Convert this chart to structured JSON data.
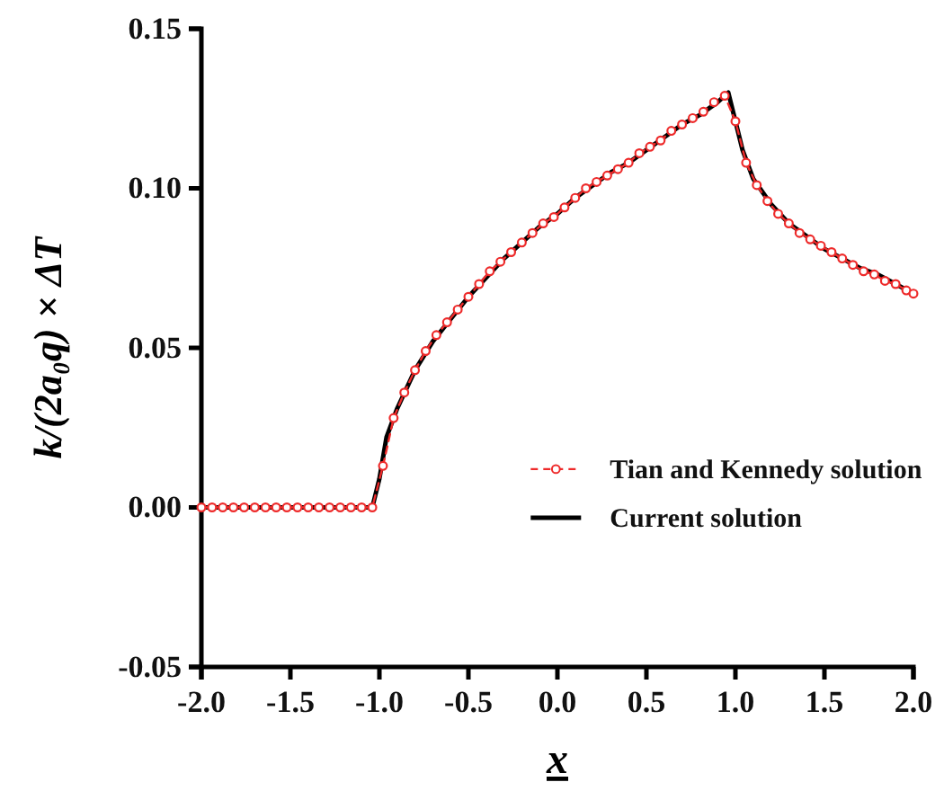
{
  "chart_data": {
    "type": "line",
    "xlabel": "x",
    "ylabel": "k/(2a₀q) × ΔT",
    "xlim": [
      -2,
      2
    ],
    "ylim": [
      -0.05,
      0.15
    ],
    "xticks": [
      {
        "value": -2,
        "label": "-2.0"
      },
      {
        "value": -1.5,
        "label": "-1.5"
      },
      {
        "value": -1,
        "label": "-1.0"
      },
      {
        "value": -0.5,
        "label": "-0.5"
      },
      {
        "value": 0,
        "label": "0.0"
      },
      {
        "value": 0.5,
        "label": "0.5"
      },
      {
        "value": 1,
        "label": "1.0"
      },
      {
        "value": 1.5,
        "label": "1.5"
      },
      {
        "value": 2,
        "label": "2.0"
      }
    ],
    "yticks": [
      {
        "value": -0.05,
        "label": "-0.05"
      },
      {
        "value": 0,
        "label": "0.00"
      },
      {
        "value": 0.05,
        "label": "0.05"
      },
      {
        "value": 0.1,
        "label": "0.10"
      },
      {
        "value": 0.15,
        "label": "0.15"
      }
    ],
    "grid": false,
    "legend": "right",
    "series": [
      {
        "name": "Tian and Kennedy solution",
        "color": "#ee2a2a",
        "line_style": "dashed",
        "marker": "circle",
        "x": [
          -2,
          -1.94,
          -1.88,
          -1.82,
          -1.76,
          -1.7,
          -1.64,
          -1.58,
          -1.52,
          -1.46,
          -1.4,
          -1.34,
          -1.28,
          -1.22,
          -1.16,
          -1.1,
          -1.04,
          -0.98,
          -0.92,
          -0.86,
          -0.8,
          -0.74,
          -0.68,
          -0.62,
          -0.56,
          -0.5,
          -0.44,
          -0.38,
          -0.32,
          -0.26,
          -0.2,
          -0.14,
          -0.08,
          -0.02,
          0.04,
          0.1,
          0.16,
          0.22,
          0.28,
          0.34,
          0.4,
          0.46,
          0.52,
          0.58,
          0.64,
          0.7,
          0.76,
          0.82,
          0.88,
          0.94,
          1,
          1.06,
          1.12,
          1.18,
          1.24,
          1.3,
          1.36,
          1.42,
          1.48,
          1.54,
          1.6,
          1.66,
          1.72,
          1.78,
          1.84,
          1.9,
          1.96,
          2
        ],
        "values": [
          0,
          0,
          0,
          0,
          0,
          0,
          0,
          0,
          0,
          0,
          0,
          0,
          0,
          0,
          0,
          0,
          0,
          0.013,
          0.028,
          0.036,
          0.043,
          0.049,
          0.054,
          0.058,
          0.062,
          0.066,
          0.07,
          0.074,
          0.077,
          0.08,
          0.083,
          0.086,
          0.089,
          0.091,
          0.094,
          0.097,
          0.1,
          0.102,
          0.104,
          0.106,
          0.108,
          0.111,
          0.113,
          0.115,
          0.118,
          0.12,
          0.122,
          0.124,
          0.127,
          0.129,
          0.121,
          0.108,
          0.101,
          0.096,
          0.092,
          0.089,
          0.086,
          0.084,
          0.082,
          0.08,
          0.078,
          0.076,
          0.074,
          0.073,
          0.071,
          0.07,
          0.068,
          0.067
        ]
      },
      {
        "name": "Current solution",
        "color": "#000000",
        "line_style": "solid",
        "marker": "none",
        "x": [
          -2,
          -1.04,
          -1,
          -0.96,
          -0.9,
          -0.8,
          -0.7,
          -0.6,
          -0.5,
          -0.4,
          -0.3,
          -0.2,
          -0.1,
          0,
          0.1,
          0.2,
          0.3,
          0.4,
          0.5,
          0.6,
          0.7,
          0.8,
          0.9,
          0.96,
          1,
          1.04,
          1.1,
          1.2,
          1.3,
          1.4,
          1.5,
          1.6,
          1.7,
          1.8,
          1.9,
          2
        ],
        "values": [
          0,
          0,
          0.009,
          0.022,
          0.031,
          0.043,
          0.052,
          0.059,
          0.066,
          0.072,
          0.078,
          0.083,
          0.088,
          0.092,
          0.097,
          0.101,
          0.105,
          0.108,
          0.112,
          0.116,
          0.12,
          0.123,
          0.127,
          0.13,
          0.121,
          0.112,
          0.103,
          0.095,
          0.089,
          0.085,
          0.081,
          0.078,
          0.075,
          0.073,
          0.07,
          0.067
        ]
      }
    ]
  }
}
